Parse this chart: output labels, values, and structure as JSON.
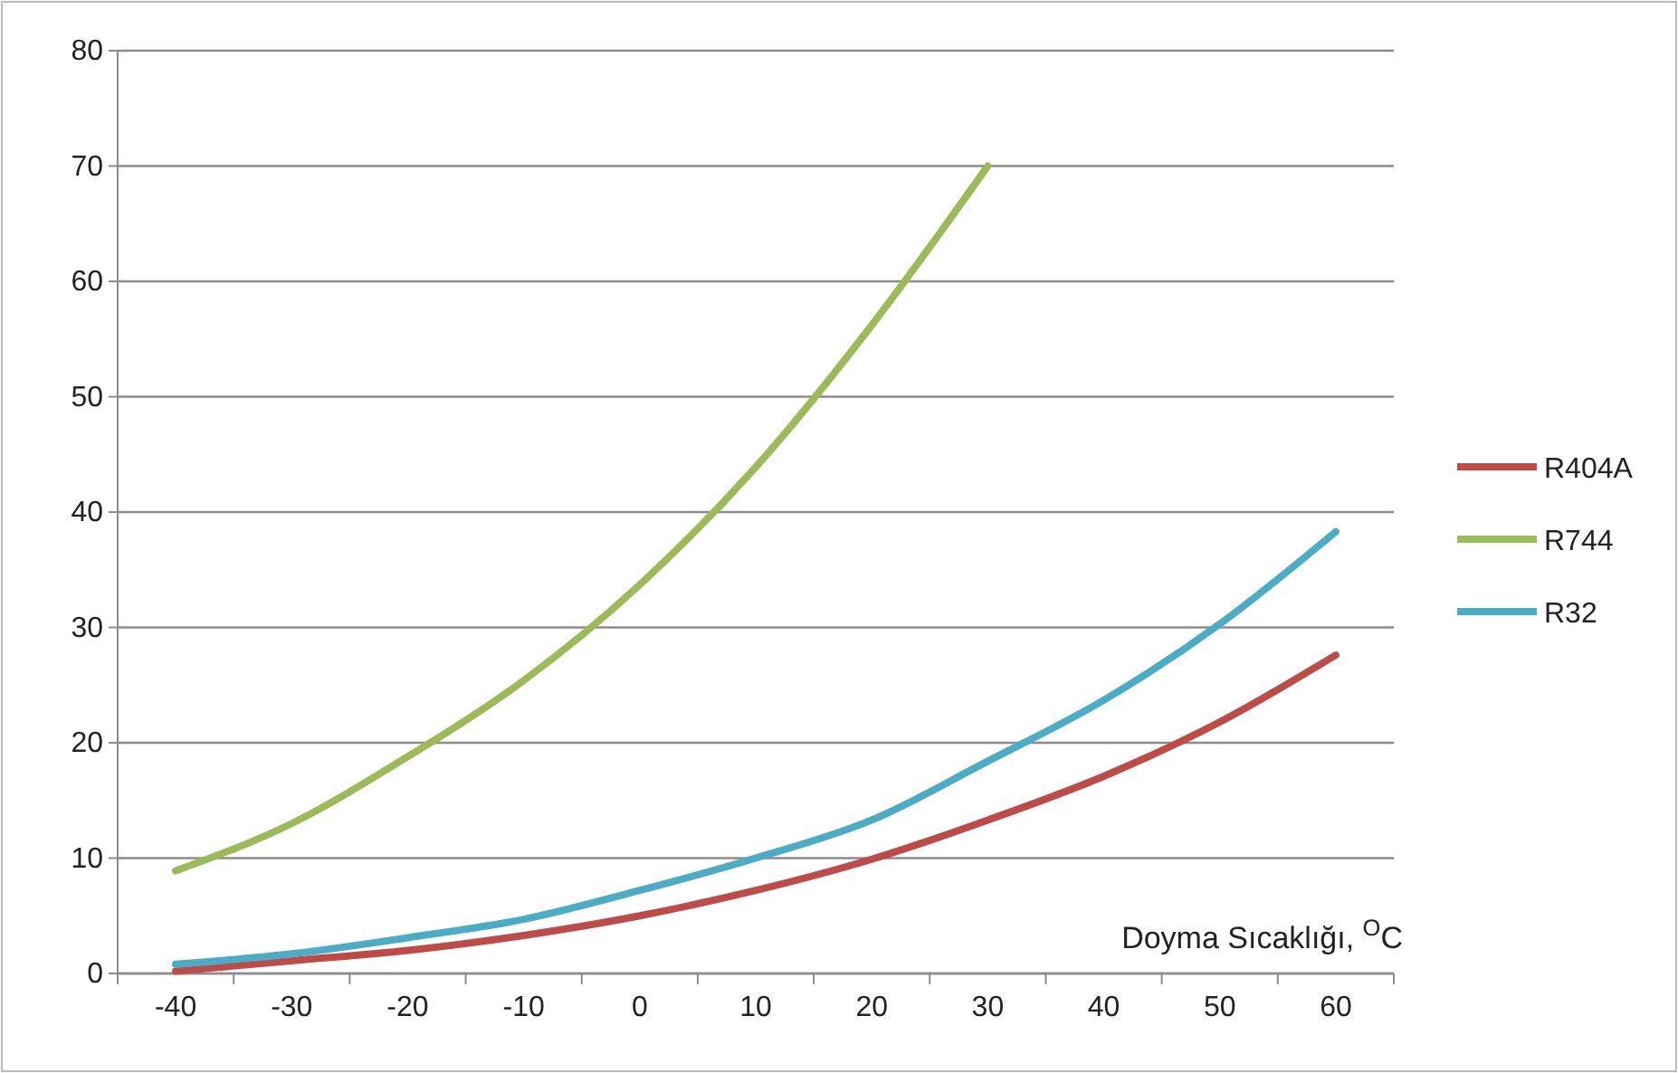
{
  "chart_data": {
    "type": "line",
    "xlabel": "Doyma Sıcaklığı, $^{O}$C",
    "categories": [
      "-40",
      "-30",
      "-20",
      "-10",
      "0",
      "10",
      "20",
      "30",
      "40",
      "50",
      "60"
    ],
    "series": [
      {
        "name": "R404A",
        "color": "#be4b48",
        "values": [
          0.2,
          1.1,
          2,
          3.3,
          5,
          7.2,
          9.9,
          13.3,
          17.1,
          21.8,
          27.6
        ]
      },
      {
        "name": "R744",
        "color": "#9bbb59",
        "values": [
          8.9,
          13,
          18.8,
          25.4,
          33.7,
          43.9,
          56.2,
          70,
          null,
          null,
          null
        ]
      },
      {
        "name": "R32",
        "color": "#4bacc6",
        "values": [
          0.8,
          1.7,
          3.1,
          4.7,
          7.2,
          10,
          13.3,
          18.4,
          23.7,
          30.3,
          38.3
        ]
      }
    ],
    "ylim": [
      0,
      80
    ],
    "yticks": [
      0,
      10,
      20,
      30,
      40,
      50,
      60,
      70,
      80
    ],
    "grid": "y",
    "legend": "right",
    "marker": "none",
    "line_style": "solid"
  }
}
